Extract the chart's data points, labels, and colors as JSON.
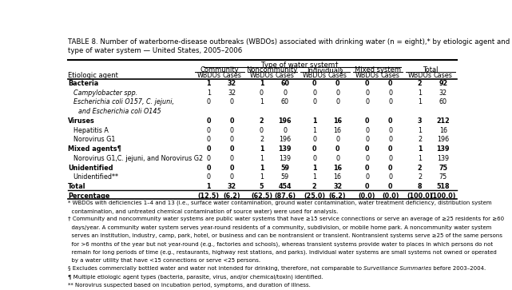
{
  "title": "TABLE 8. Number of waterborne-disease outbreaks (WBDOs) associated with drinking water (n = eight),* by etiologic agent and\ntype of water system — United States, 2005–2006",
  "col_header_row1": "Type of water system†",
  "col_header_row2": [
    "Community",
    "Noncommunity",
    "Individual§",
    "Mixed system",
    "Total"
  ],
  "col_header_row3": [
    "WBDOs",
    "Cases",
    "WBDOs",
    "Cases",
    "WBDOs",
    "Cases",
    "WBDOs",
    "Cases",
    "WBDOs",
    "Cases"
  ],
  "row_label_col": "Etiologic agent",
  "rows": [
    {
      "label": "Bacteria",
      "bold": true,
      "italic": false,
      "indent": 0,
      "vals": [
        1,
        32,
        1,
        60,
        0,
        0,
        0,
        0,
        2,
        92
      ]
    },
    {
      "label": "Campylobacter spp.",
      "bold": false,
      "italic": true,
      "indent": 1,
      "vals": [
        1,
        32,
        0,
        0,
        0,
        0,
        0,
        0,
        1,
        32
      ]
    },
    {
      "label": "Escherichia coli O157, C. jejuni,",
      "bold": false,
      "italic": true,
      "indent": 1,
      "vals": [
        0,
        0,
        1,
        60,
        0,
        0,
        0,
        0,
        1,
        60
      ]
    },
    {
      "label": "and Escherichia coli O145",
      "bold": false,
      "italic": true,
      "indent": 2,
      "vals": null
    },
    {
      "label": "Viruses",
      "bold": true,
      "italic": false,
      "indent": 0,
      "vals": [
        0,
        0,
        2,
        196,
        1,
        16,
        0,
        0,
        3,
        212
      ]
    },
    {
      "label": "Hepatitis A",
      "bold": false,
      "italic": false,
      "indent": 1,
      "vals": [
        0,
        0,
        0,
        0,
        1,
        16,
        0,
        0,
        1,
        16
      ]
    },
    {
      "label": "Norovirus G1",
      "bold": false,
      "italic": false,
      "indent": 1,
      "vals": [
        0,
        0,
        2,
        196,
        0,
        0,
        0,
        0,
        2,
        196
      ]
    },
    {
      "label": "Mixed agents¶",
      "bold": true,
      "italic": false,
      "indent": 0,
      "vals": [
        0,
        0,
        1,
        139,
        0,
        0,
        0,
        0,
        1,
        139
      ]
    },
    {
      "label": "Norovirus G1,C. jejuni, and Norovirus G2",
      "bold": false,
      "italic": false,
      "indent": 1,
      "vals": [
        0,
        0,
        1,
        139,
        0,
        0,
        0,
        0,
        1,
        139
      ]
    },
    {
      "label": "Unidentified",
      "bold": true,
      "italic": false,
      "indent": 0,
      "vals": [
        0,
        0,
        1,
        59,
        1,
        16,
        0,
        0,
        2,
        75
      ]
    },
    {
      "label": "Unidentified**",
      "bold": false,
      "italic": false,
      "indent": 1,
      "vals": [
        0,
        0,
        1,
        59,
        1,
        16,
        0,
        0,
        2,
        75
      ]
    },
    {
      "label": "Total",
      "bold": true,
      "italic": false,
      "indent": 0,
      "vals": [
        1,
        32,
        5,
        454,
        2,
        32,
        0,
        0,
        8,
        518
      ]
    },
    {
      "label": "Percentage",
      "bold": true,
      "italic": false,
      "indent": 0,
      "vals_str": [
        "(12.5)",
        "(6.2)",
        "(62.5)",
        "(87.6)",
        "(25.0)",
        "(6.2)",
        "(0.0)",
        "(0.0)",
        "(100.0)",
        "(100.0)"
      ]
    }
  ],
  "footnotes": [
    "* WBDOs with deficiencies 1–4 and 13 (i.e., surface water contamination, ground water contamination, water treatment deficiency, distribution system",
    "  contamination, and untreated chemical contamination of source water) were used for analysis.",
    "† Community and noncommunity water systems are public water systems that have ≥15 service connections or serve an average of ≥25 residents for ≥60",
    "  days/year. A community water system serves year-round residents of a community, subdivision, or mobile home park. A noncommunity water system",
    "  serves an institution, industry, camp, park, hotel, or business and can be nontransient or transient. Nontransient systems serve ≥25 of the same persons",
    "  for >6 months of the year but not year-round (e.g., factories and schools), whereas transient systems provide water to places in which persons do not",
    "  remain for long periods of time (e.g., restaurants, highway rest stations, and parks). Individual water systems are small systems not owned or operated",
    "  by a water utility that have <15 connections or serve <25 persons.",
    "§ Excludes commercially bottled water and water not intended for drinking, therefore, not comparable to Surveillance Summaries before 2003–2004.",
    "¶ Multiple etiologic agent types (bacteria, parasite, virus, and/or chemical/toxin) identified.",
    "** Norovirus suspected based on incubation period, symptoms, and duration of illness."
  ]
}
